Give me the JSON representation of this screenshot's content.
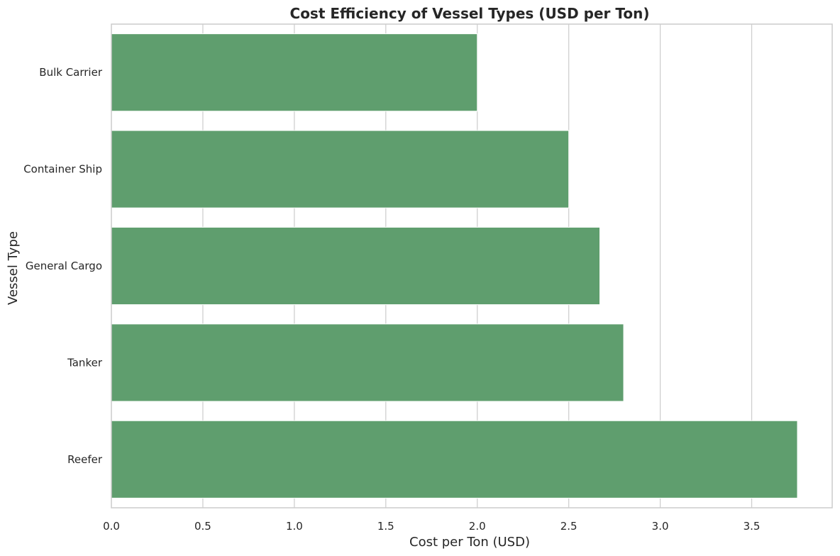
{
  "chart_data": {
    "type": "bar",
    "orientation": "horizontal",
    "title": "Cost Efficiency of Vessel Types (USD per Ton)",
    "xlabel": "Cost per Ton (USD)",
    "ylabel": "Vessel Type",
    "categories": [
      "Bulk Carrier",
      "Container Ship",
      "General Cargo",
      "Tanker",
      "Reefer"
    ],
    "values": [
      2.0,
      2.5,
      2.67,
      2.8,
      3.75
    ],
    "xlim": [
      0,
      3.94
    ],
    "xticks": [
      "0.0",
      "0.5",
      "1.0",
      "1.5",
      "2.0",
      "2.5",
      "3.0",
      "3.5"
    ],
    "grid": "vertical",
    "legend": "none",
    "bar_color": "#5f9e6e",
    "grid_color": "#cccccc",
    "text_color": "#262626"
  }
}
